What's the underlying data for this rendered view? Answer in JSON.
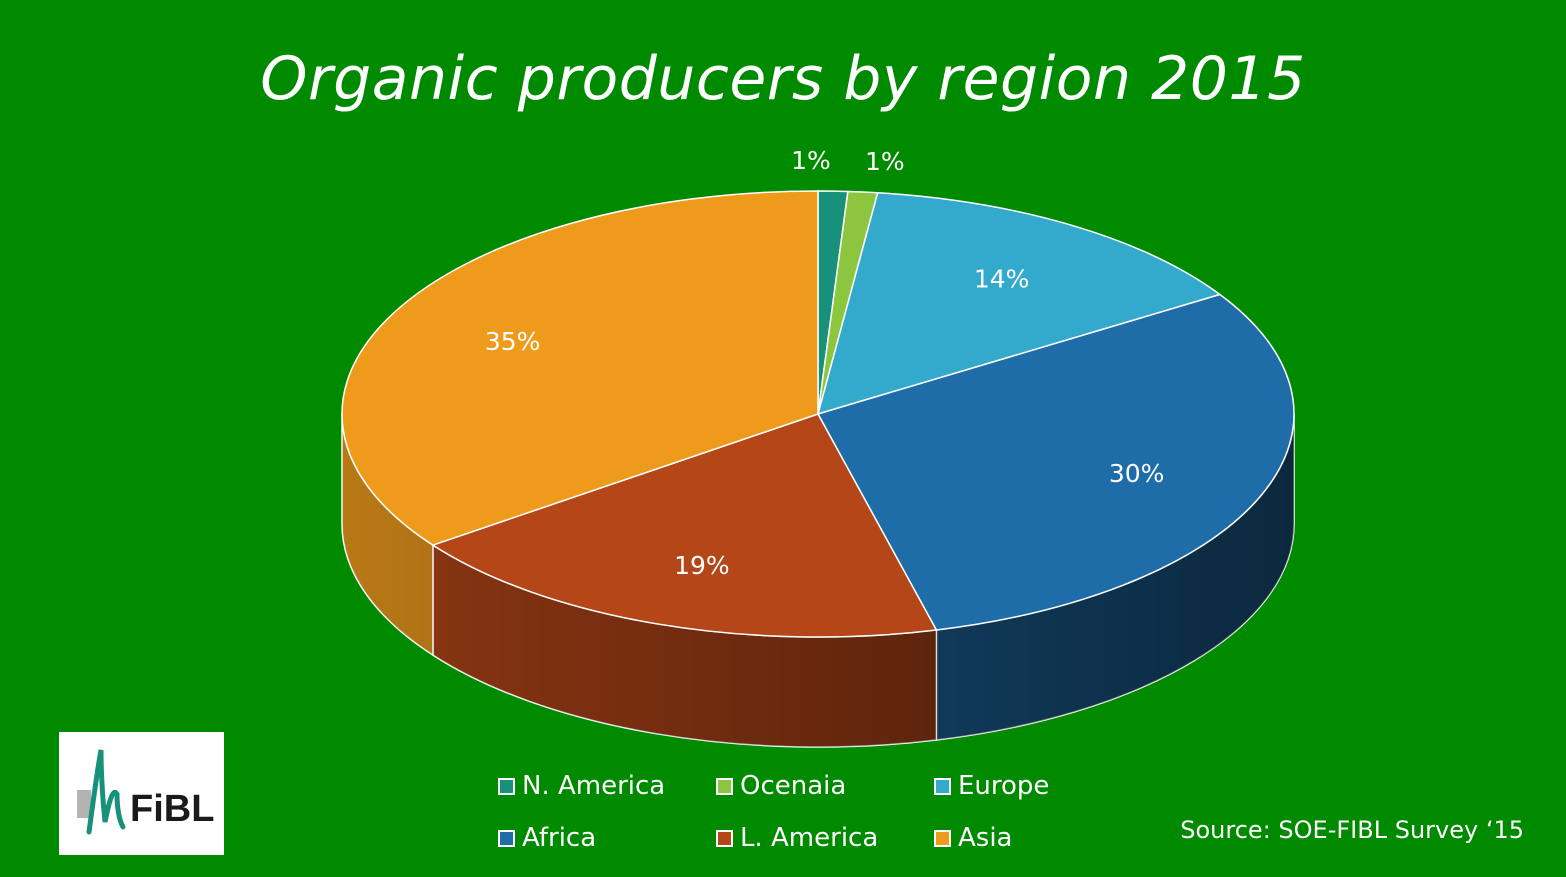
{
  "chart_data": {
    "type": "pie",
    "title": "Organic producers by region 2015",
    "categories": [
      "N. America",
      "Ocenaia",
      "Europe",
      "Africa",
      "L. America",
      "Asia"
    ],
    "values": [
      1,
      1,
      14,
      30,
      19,
      35
    ],
    "labels": [
      "1%",
      "1%",
      "14%",
      "30%",
      "19%",
      "35%"
    ],
    "colors": [
      "#17917a",
      "#8cc63f",
      "#33aacc",
      "#1f6da8",
      "#b54617",
      "#ee9b1c"
    ],
    "legend_position": "bottom"
  },
  "source": "Source:  SOE-FIBL Survey ‘15",
  "logo": {
    "text": "FiBL"
  }
}
